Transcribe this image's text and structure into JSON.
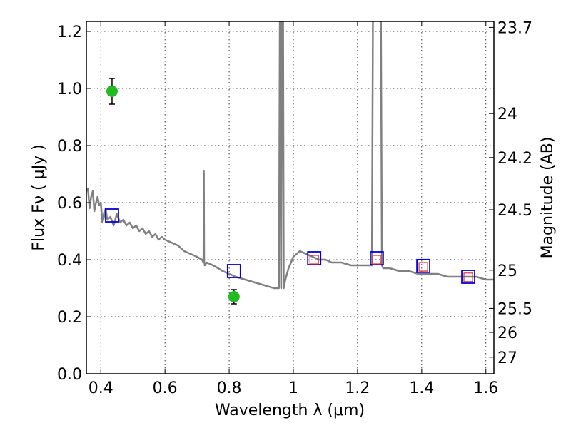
{
  "chart_data": {
    "type": "line",
    "xlabel": "Wavelength  λ (μm)",
    "ylabel": "Flux  Fν  ( μJy )",
    "ylabel_right": "Magnitude (AB)",
    "xlim": [
      0.355,
      1.625
    ],
    "ylim": [
      0.0,
      1.235
    ],
    "grid": true,
    "x_ticks": [
      0.4,
      0.6,
      0.8,
      1.0,
      1.2,
      1.4,
      1.6
    ],
    "x_tick_labels": [
      "0.4",
      "0.6",
      "0.8",
      "1",
      "1.2",
      "1.4",
      "1.6"
    ],
    "y_ticks": [
      0.0,
      0.2,
      0.4,
      0.6,
      0.8,
      1.0,
      1.2
    ],
    "y_tick_labels": [
      "0.0",
      "0.2",
      "0.4",
      "0.6",
      "0.8",
      "1.0",
      "1.2"
    ],
    "right_ticks": [
      {
        "label": "23.7",
        "flux": 1.214
      },
      {
        "label": "24",
        "flux": 0.912
      },
      {
        "label": "24.2",
        "flux": 0.758
      },
      {
        "label": "24.5",
        "flux": 0.575
      },
      {
        "label": "25",
        "flux": 0.363
      },
      {
        "label": "25.5",
        "flux": 0.229
      },
      {
        "label": "26",
        "flux": 0.145
      },
      {
        "label": "27",
        "flux": 0.058
      }
    ],
    "model_spectrum": {
      "color": "#808080",
      "x": [
        0.355,
        0.36,
        0.365,
        0.37,
        0.375,
        0.38,
        0.385,
        0.39,
        0.395,
        0.4,
        0.405,
        0.41,
        0.415,
        0.42,
        0.43,
        0.44,
        0.45,
        0.46,
        0.47,
        0.48,
        0.49,
        0.5,
        0.51,
        0.52,
        0.53,
        0.54,
        0.55,
        0.56,
        0.57,
        0.58,
        0.59,
        0.6,
        0.62,
        0.64,
        0.66,
        0.68,
        0.7,
        0.715,
        0.72,
        0.721,
        0.722,
        0.723,
        0.724,
        0.73,
        0.75,
        0.78,
        0.8,
        0.82,
        0.85,
        0.88,
        0.91,
        0.94,
        0.955,
        0.958,
        0.96,
        0.962,
        0.965,
        0.968,
        0.97,
        0.975,
        0.985,
        1.0,
        1.02,
        1.04,
        1.06,
        1.08,
        1.1,
        1.12,
        1.15,
        1.18,
        1.2,
        1.23,
        1.245,
        1.248,
        1.252,
        1.27,
        1.273,
        1.276,
        1.28,
        1.3,
        1.33,
        1.36,
        1.39,
        1.42,
        1.45,
        1.48,
        1.51,
        1.54,
        1.57,
        1.6,
        1.625
      ],
      "y": [
        0.64,
        0.65,
        0.58,
        0.62,
        0.64,
        0.57,
        0.6,
        0.62,
        0.59,
        0.6,
        0.53,
        0.55,
        0.58,
        0.54,
        0.55,
        0.52,
        0.56,
        0.53,
        0.54,
        0.52,
        0.53,
        0.51,
        0.52,
        0.5,
        0.51,
        0.49,
        0.5,
        0.48,
        0.49,
        0.47,
        0.48,
        0.47,
        0.46,
        0.45,
        0.43,
        0.42,
        0.41,
        0.4,
        0.39,
        0.71,
        0.39,
        0.39,
        0.38,
        0.39,
        0.38,
        0.36,
        0.35,
        0.34,
        0.33,
        0.32,
        0.31,
        0.3,
        0.3,
        1.25,
        1.25,
        0.3,
        1.25,
        1.25,
        0.3,
        0.33,
        0.37,
        0.41,
        0.43,
        0.42,
        0.41,
        0.4,
        0.4,
        0.39,
        0.39,
        0.38,
        0.38,
        0.38,
        0.38,
        1.25,
        1.25,
        1.25,
        1.25,
        0.38,
        0.37,
        0.37,
        0.36,
        0.36,
        0.35,
        0.35,
        0.35,
        0.34,
        0.34,
        0.34,
        0.34,
        0.33,
        0.33
      ]
    },
    "observed_points": {
      "color": "#22bb22",
      "points": [
        {
          "x": 0.435,
          "y": 0.99,
          "err": 0.045
        },
        {
          "x": 0.815,
          "y": 0.27,
          "err": 0.025
        }
      ]
    },
    "model_photometry": {
      "color": "#0000dd",
      "points": [
        {
          "x": 0.435,
          "y": 0.555
        },
        {
          "x": 0.815,
          "y": 0.36
        },
        {
          "x": 1.065,
          "y": 0.405
        },
        {
          "x": 1.26,
          "y": 0.405
        },
        {
          "x": 1.405,
          "y": 0.378
        },
        {
          "x": 1.545,
          "y": 0.34
        }
      ]
    },
    "model_photometry_inner": {
      "color": "#dd3333",
      "points": [
        {
          "x": 1.065,
          "y": 0.4
        },
        {
          "x": 1.26,
          "y": 0.4
        },
        {
          "x": 1.405,
          "y": 0.375
        },
        {
          "x": 1.545,
          "y": 0.338
        }
      ]
    }
  }
}
